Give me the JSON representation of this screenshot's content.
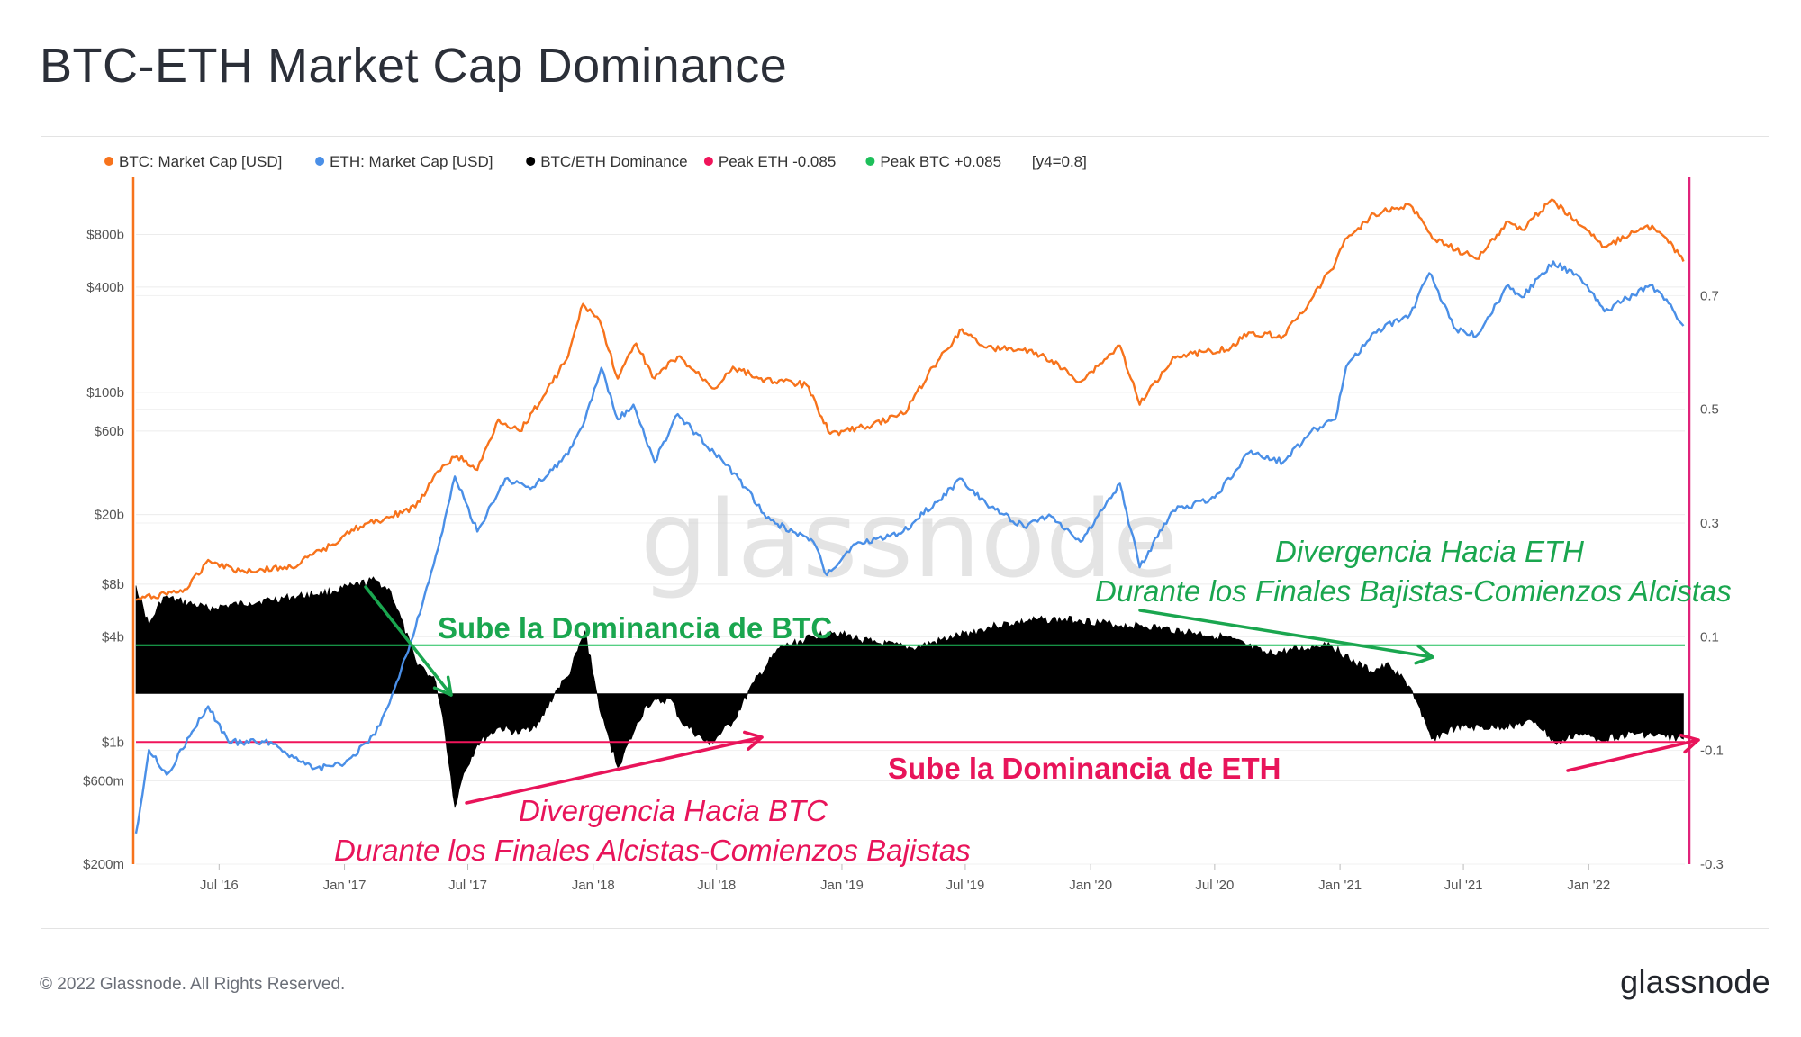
{
  "title": "BTC-ETH Market Cap Dominance",
  "footer": {
    "copyright": "© 2022 Glassnode. All Rights Reserved.",
    "logo": "glassnode"
  },
  "watermark": "glassnode",
  "legend": [
    {
      "label": "BTC: Market Cap [USD]",
      "color": "#f7731c"
    },
    {
      "label": "ETH: Market Cap [USD]",
      "color": "#4a8fe7"
    },
    {
      "label": "BTC/ETH Dominance",
      "color": "#000000"
    },
    {
      "label": "Peak ETH -0.085",
      "color": "#f0145a"
    },
    {
      "label": "Peak BTC +0.085",
      "color": "#1dbf5a"
    },
    {
      "label": "[y4=0.8]",
      "color": ""
    }
  ],
  "annotations": {
    "btc_rise": "Sube la Dominancia de BTC",
    "eth_rise": "Sube la Dominancia de ETH",
    "div_eth_1": "Divergencia Hacia ETH",
    "div_eth_2": "Durante los Finales Bajistas-Comienzos Alcistas",
    "div_btc_1": "Divergencia Hacia BTC",
    "div_btc_2": "Durante los Finales Alcistas-Comienzos Bajistas"
  },
  "chart_data": {
    "type": "line",
    "x_ticks": [
      "Jul '16",
      "Jan '17",
      "Jul '17",
      "Jan '18",
      "Jul '18",
      "Jan '19",
      "Jul '19",
      "Jan '20",
      "Jul '20",
      "Jan '21",
      "Jul '21",
      "Jan '22"
    ],
    "y_left": {
      "scale": "log",
      "ticks": [
        "$200m",
        "$600m",
        "$1b",
        "$4b",
        "$8b",
        "$20b",
        "$60b",
        "$100b",
        "$400b",
        "$800b"
      ],
      "tick_values": [
        200000000.0,
        600000000.0,
        1000000000.0,
        4000000000.0,
        8000000000.0,
        20000000000.0,
        60000000000.0,
        100000000000.0,
        400000000000.0,
        800000000000.0
      ],
      "range": [
        200000000.0,
        1600000000000.0
      ],
      "color": "#f7731c"
    },
    "y_right": {
      "ticks": [
        "0.7",
        "0.5",
        "0.3",
        "0.1",
        "-0.1",
        "-0.3"
      ],
      "tick_values": [
        0.7,
        0.5,
        0.3,
        0.1,
        -0.1,
        -0.3
      ],
      "range": [
        -0.3,
        0.9
      ],
      "color": "#e0237a"
    },
    "reference_lines": [
      {
        "name": "Peak BTC +0.085",
        "value": 0.085,
        "color": "#1dbf5a"
      },
      {
        "name": "Peak ETH -0.085",
        "value": -0.085,
        "color": "#f0145a"
      }
    ],
    "series": [
      {
        "name": "BTC: Market Cap [USD]",
        "axis": "left",
        "color": "#f7731c",
        "points": [
          [
            "2016-03-01",
            6500000000.0
          ],
          [
            "2016-05-15",
            7500000000.0
          ],
          [
            "2016-06-15",
            11000000000.0
          ],
          [
            "2016-08-01",
            9500000000.0
          ],
          [
            "2016-10-15",
            10000000000.0
          ],
          [
            "2016-12-15",
            13500000000.0
          ],
          [
            "2017-01-05",
            16000000000.0
          ],
          [
            "2017-03-01",
            19000000000.0
          ],
          [
            "2017-04-15",
            22000000000.0
          ],
          [
            "2017-05-25",
            38000000000.0
          ],
          [
            "2017-06-15",
            43000000000.0
          ],
          [
            "2017-07-15",
            36000000000.0
          ],
          [
            "2017-08-15",
            70000000000.0
          ],
          [
            "2017-09-15",
            60000000000.0
          ],
          [
            "2017-10-20",
            95000000000.0
          ],
          [
            "2017-11-25",
            160000000000.0
          ],
          [
            "2017-12-17",
            320000000000.0
          ],
          [
            "2018-01-10",
            260000000000.0
          ],
          [
            "2018-02-06",
            120000000000.0
          ],
          [
            "2018-03-05",
            190000000000.0
          ],
          [
            "2018-04-01",
            120000000000.0
          ],
          [
            "2018-05-05",
            160000000000.0
          ],
          [
            "2018-06-28",
            105000000000.0
          ],
          [
            "2018-07-25",
            140000000000.0
          ],
          [
            "2018-09-01",
            120000000000.0
          ],
          [
            "2018-11-10",
            110000000000.0
          ],
          [
            "2018-12-15",
            58000000000.0
          ],
          [
            "2019-02-01",
            63000000000.0
          ],
          [
            "2019-04-01",
            75000000000.0
          ],
          [
            "2019-05-15",
            140000000000.0
          ],
          [
            "2019-06-26",
            230000000000.0
          ],
          [
            "2019-08-01",
            180000000000.0
          ],
          [
            "2019-09-20",
            175000000000.0
          ],
          [
            "2019-10-26",
            160000000000.0
          ],
          [
            "2019-12-17",
            115000000000.0
          ],
          [
            "2020-02-13",
            185000000000.0
          ],
          [
            "2020-03-13",
            85000000000.0
          ],
          [
            "2020-05-01",
            160000000000.0
          ],
          [
            "2020-06-15",
            170000000000.0
          ],
          [
            "2020-07-25",
            180000000000.0
          ],
          [
            "2020-08-20",
            220000000000.0
          ],
          [
            "2020-10-10",
            210000000000.0
          ],
          [
            "2020-11-20",
            340000000000.0
          ],
          [
            "2020-12-25",
            550000000000.0
          ],
          [
            "2021-01-08",
            750000000000.0
          ],
          [
            "2021-02-20",
            1050000000000.0
          ],
          [
            "2021-04-14",
            1180000000000.0
          ],
          [
            "2021-05-20",
            750000000000.0
          ],
          [
            "2021-07-20",
            580000000000.0
          ],
          [
            "2021-09-05",
            950000000000.0
          ],
          [
            "2021-09-25",
            850000000000.0
          ],
          [
            "2021-11-08",
            1270000000000.0
          ],
          [
            "2021-12-20",
            900000000000.0
          ],
          [
            "2022-01-24",
            680000000000.0
          ],
          [
            "2022-03-28",
            900000000000.0
          ],
          [
            "2022-04-25",
            760000000000.0
          ],
          [
            "2022-05-20",
            560000000000.0
          ]
        ]
      },
      {
        "name": "ETH: Market Cap [USD]",
        "axis": "left",
        "color": "#4a8fe7",
        "points": [
          [
            "2016-03-01",
            300000000.0
          ],
          [
            "2016-03-20",
            900000000.0
          ],
          [
            "2016-04-15",
            650000000.0
          ],
          [
            "2016-06-15",
            1600000000.0
          ],
          [
            "2016-07-15",
            1000000000.0
          ],
          [
            "2016-09-15",
            1000000000.0
          ],
          [
            "2016-11-15",
            700000000.0
          ],
          [
            "2017-01-01",
            750000000.0
          ],
          [
            "2017-02-15",
            1100000000.0
          ],
          [
            "2017-03-15",
            2000000000.0
          ],
          [
            "2017-04-15",
            4500000000.0
          ],
          [
            "2017-05-25",
            16000000000.0
          ],
          [
            "2017-06-12",
            33000000000.0
          ],
          [
            "2017-07-15",
            16000000000.0
          ],
          [
            "2017-08-25",
            32000000000.0
          ],
          [
            "2017-10-01",
            28000000000.0
          ],
          [
            "2017-11-25",
            44000000000.0
          ],
          [
            "2017-12-20",
            70000000000.0
          ],
          [
            "2018-01-13",
            138000000000.0
          ],
          [
            "2018-02-06",
            70000000000.0
          ],
          [
            "2018-03-01",
            85000000000.0
          ],
          [
            "2018-04-01",
            40000000000.0
          ],
          [
            "2018-05-05",
            75000000000.0
          ],
          [
            "2018-06-28",
            45000000000.0
          ],
          [
            "2018-08-15",
            28000000000.0
          ],
          [
            "2018-09-12",
            19000000000.0
          ],
          [
            "2018-11-20",
            14000000000.0
          ],
          [
            "2018-12-10",
            9000000000.0
          ],
          [
            "2019-01-15",
            13000000000.0
          ],
          [
            "2019-02-20",
            14500000000.0
          ],
          [
            "2019-04-01",
            16000000000.0
          ],
          [
            "2019-06-26",
            32000000000.0
          ],
          [
            "2019-08-01",
            23000000000.0
          ],
          [
            "2019-09-25",
            17000000000.0
          ],
          [
            "2019-11-01",
            20000000000.0
          ],
          [
            "2019-12-17",
            14000000000.0
          ],
          [
            "2020-02-13",
            30000000000.0
          ],
          [
            "2020-03-13",
            10000000000.0
          ],
          [
            "2020-05-01",
            21000000000.0
          ],
          [
            "2020-07-01",
            25000000000.0
          ],
          [
            "2020-08-20",
            45000000000.0
          ],
          [
            "2020-10-10",
            40000000000.0
          ],
          [
            "2020-11-20",
            60000000000.0
          ],
          [
            "2020-12-25",
            70000000000.0
          ],
          [
            "2021-01-10",
            140000000000.0
          ],
          [
            "2021-02-20",
            220000000000.0
          ],
          [
            "2021-04-14",
            280000000000.0
          ],
          [
            "2021-05-12",
            480000000000.0
          ],
          [
            "2021-06-20",
            230000000000.0
          ],
          [
            "2021-07-20",
            210000000000.0
          ],
          [
            "2021-09-05",
            410000000000.0
          ],
          [
            "2021-09-25",
            350000000000.0
          ],
          [
            "2021-11-10",
            560000000000.0
          ],
          [
            "2021-12-20",
            450000000000.0
          ],
          [
            "2022-01-24",
            290000000000.0
          ],
          [
            "2022-04-01",
            410000000000.0
          ],
          [
            "2022-04-25",
            340000000000.0
          ],
          [
            "2022-05-20",
            240000000000.0
          ]
        ]
      },
      {
        "name": "BTC/ETH Dominance",
        "axis": "right",
        "color": "#000000",
        "style": "area",
        "points": [
          [
            "2016-03-01",
            0.19
          ],
          [
            "2016-03-20",
            0.12
          ],
          [
            "2016-04-10",
            0.17
          ],
          [
            "2016-06-15",
            0.15
          ],
          [
            "2016-08-15",
            0.16
          ],
          [
            "2016-10-15",
            0.17
          ],
          [
            "2016-12-15",
            0.18
          ],
          [
            "2017-01-15",
            0.19
          ],
          [
            "2017-02-15",
            0.2
          ],
          [
            "2017-03-10",
            0.18
          ],
          [
            "2017-04-15",
            0.06
          ],
          [
            "2017-05-15",
            0.02
          ],
          [
            "2017-05-25",
            -0.04
          ],
          [
            "2017-06-12",
            -0.2
          ],
          [
            "2017-06-25",
            -0.14
          ],
          [
            "2017-07-15",
            -0.09
          ],
          [
            "2017-08-15",
            -0.06
          ],
          [
            "2017-09-15",
            -0.07
          ],
          [
            "2017-10-15",
            -0.05
          ],
          [
            "2017-11-10",
            0.01
          ],
          [
            "2017-11-25",
            0.03
          ],
          [
            "2017-12-20",
            0.11
          ],
          [
            "2018-01-05",
            0.01
          ],
          [
            "2018-01-13",
            -0.04
          ],
          [
            "2018-02-06",
            -0.13
          ],
          [
            "2018-03-01",
            -0.07
          ],
          [
            "2018-03-20",
            -0.02
          ],
          [
            "2018-04-25",
            -0.01
          ],
          [
            "2018-05-10",
            -0.05
          ],
          [
            "2018-06-20",
            -0.09
          ],
          [
            "2018-07-25",
            -0.05
          ],
          [
            "2018-08-25",
            0.02
          ],
          [
            "2018-10-01",
            0.08
          ],
          [
            "2018-12-15",
            0.11
          ],
          [
            "2019-02-15",
            0.09
          ],
          [
            "2019-04-15",
            0.08
          ],
          [
            "2019-06-15",
            0.1
          ],
          [
            "2019-08-15",
            0.12
          ],
          [
            "2019-10-15",
            0.13
          ],
          [
            "2019-12-15",
            0.13
          ],
          [
            "2020-02-15",
            0.12
          ],
          [
            "2020-03-13",
            0.12
          ],
          [
            "2020-05-15",
            0.11
          ],
          [
            "2020-07-15",
            0.1
          ],
          [
            "2020-09-15",
            0.07
          ],
          [
            "2020-11-15",
            0.08
          ],
          [
            "2020-12-15",
            0.09
          ],
          [
            "2021-01-15",
            0.06
          ],
          [
            "2021-02-15",
            0.04
          ],
          [
            "2021-03-15",
            0.05
          ],
          [
            "2021-04-15",
            0.01
          ],
          [
            "2021-05-01",
            -0.04
          ],
          [
            "2021-05-15",
            -0.08
          ],
          [
            "2021-06-20",
            -0.06
          ],
          [
            "2021-08-15",
            -0.06
          ],
          [
            "2021-10-15",
            -0.05
          ],
          [
            "2021-11-15",
            -0.09
          ],
          [
            "2021-12-15",
            -0.07
          ],
          [
            "2022-01-15",
            -0.08
          ],
          [
            "2022-03-15",
            -0.07
          ],
          [
            "2022-05-20",
            -0.08
          ]
        ]
      }
    ]
  }
}
